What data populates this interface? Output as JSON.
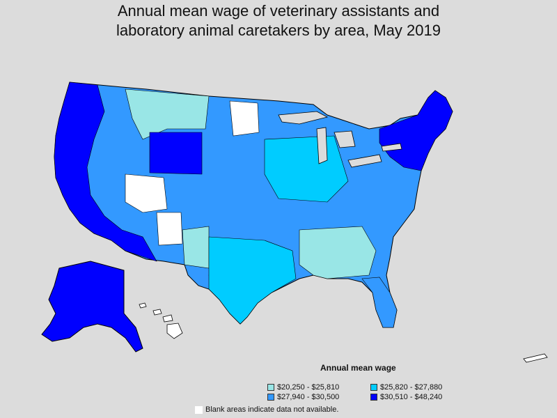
{
  "title": {
    "line1": "Annual mean wage of veterinary assistants and",
    "line2": "laboratory animal caretakers by area, May 2019"
  },
  "legend": {
    "title": "Annual mean wage",
    "items": [
      {
        "label": "$20,250 - $25,810",
        "color": "#99e6e6"
      },
      {
        "label": "$25,820 - $27,880",
        "color": "#00ccff"
      },
      {
        "label": "$27,940 - $30,500",
        "color": "#3399ff"
      },
      {
        "label": "$30,510 - $48,240",
        "color": "#0000ff"
      }
    ]
  },
  "note": "Blank areas indicate data not available.",
  "colors": {
    "background": "#dcdcdc",
    "blank": "#ffffff",
    "border": "#000000"
  }
}
